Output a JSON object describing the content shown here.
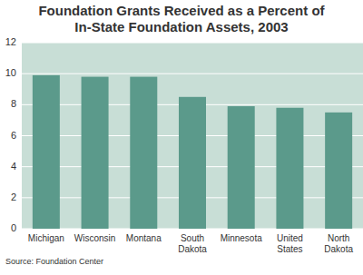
{
  "chart_data": {
    "type": "bar",
    "title": "Foundation Grants Received as a Percent of In-State Foundation Assets, 2003",
    "source": "Source: Foundation Center",
    "categories": [
      "Michigan",
      "Wisconsin",
      "Montana",
      "South Dakota",
      "Minnesota",
      "United States",
      "North Dakota"
    ],
    "values": [
      9.9,
      9.8,
      9.8,
      8.5,
      7.9,
      7.8,
      7.5
    ],
    "color": "#5b9a8b",
    "ylim": [
      0,
      12
    ],
    "yticks": [
      0,
      2,
      4,
      6,
      8,
      10,
      12
    ],
    "grid": true
  }
}
